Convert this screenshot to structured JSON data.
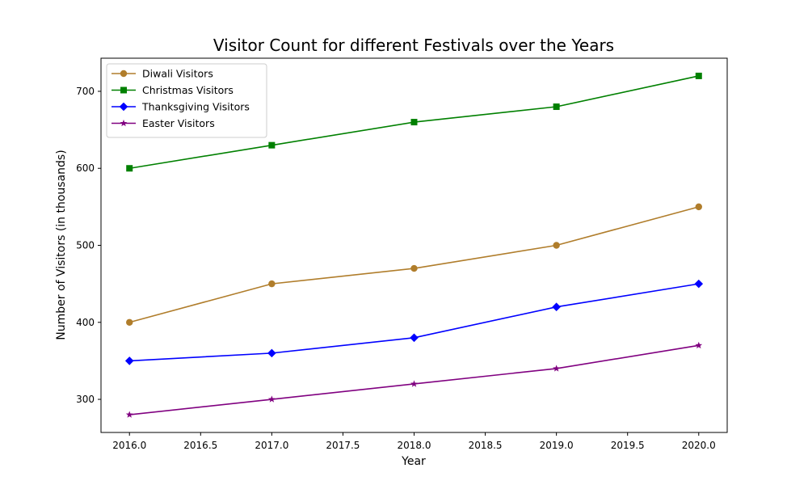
{
  "chart_data": {
    "type": "line",
    "title": "Visitor Count for different Festivals over the Years",
    "xlabel": "Year",
    "ylabel": "Number of Visitors (in thousands)",
    "x": [
      2016,
      2017,
      2018,
      2019,
      2020
    ],
    "xlim": [
      2015.8,
      2020.2
    ],
    "ylim": [
      257,
      743
    ],
    "xticks": [
      2016.0,
      2016.5,
      2017.0,
      2017.5,
      2018.0,
      2018.5,
      2019.0,
      2019.5,
      2020.0
    ],
    "xtick_labels": [
      "2016.0",
      "2016.5",
      "2017.0",
      "2017.5",
      "2018.0",
      "2018.5",
      "2019.0",
      "2019.5",
      "2020.0"
    ],
    "yticks": [
      300,
      400,
      500,
      600,
      700
    ],
    "ytick_labels": [
      "300",
      "400",
      "500",
      "600",
      "700"
    ],
    "grid": false,
    "legend_position": "top-left",
    "series": [
      {
        "name": "Diwali Visitors",
        "values": [
          400,
          450,
          470,
          500,
          550
        ],
        "color": "#b07d2b",
        "marker": "circle"
      },
      {
        "name": "Christmas Visitors",
        "values": [
          600,
          630,
          660,
          680,
          720
        ],
        "color": "#008000",
        "marker": "square"
      },
      {
        "name": "Thanksgiving Visitors",
        "values": [
          350,
          360,
          380,
          420,
          450
        ],
        "color": "#0000ff",
        "marker": "diamond"
      },
      {
        "name": "Easter Visitors",
        "values": [
          280,
          300,
          320,
          340,
          370
        ],
        "color": "#800080",
        "marker": "star"
      }
    ]
  }
}
